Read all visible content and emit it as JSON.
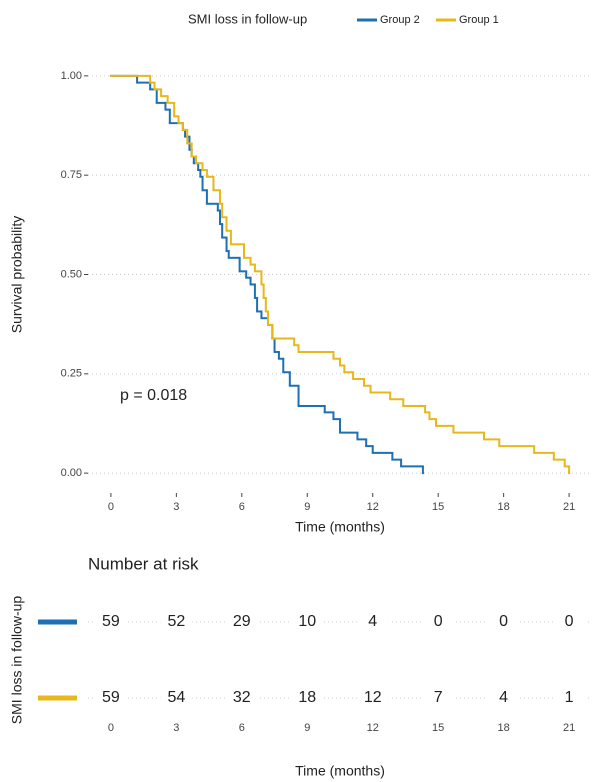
{
  "chart_data": [
    {
      "type": "step",
      "legend_title": "SMI loss in follow-up",
      "x_label": "Time (months)",
      "y_label": "Survival probability",
      "annotation": "p = 0.018",
      "xlim": [
        -1.05,
        22.05
      ],
      "ylim": [
        -0.05,
        1.05
      ],
      "xticks": [
        0,
        3,
        6,
        9,
        12,
        15,
        18,
        21
      ],
      "yticks": [
        {
          "value": 0,
          "label": "0.00"
        },
        0.25,
        {
          "value": 0.5,
          "label": "0.50"
        },
        0.75,
        {
          "value": 1,
          "label": "1.00"
        }
      ],
      "grid": true,
      "series": [
        {
          "name": "Group 2",
          "color": "#1f6fb5",
          "x": [
            0,
            1.2,
            1.8,
            2.1,
            2.5,
            2.7,
            3.3,
            3.4,
            3.6,
            3.7,
            3.8,
            4.0,
            4.1,
            4.2,
            4.4,
            4.9,
            5.0,
            5.1,
            5.3,
            5.4,
            5.9,
            6.2,
            6.4,
            6.6,
            6.7,
            6.9,
            7.2,
            7.4,
            7.5,
            7.7,
            7.9,
            8.2,
            8.6,
            9.8,
            10.2,
            10.5,
            11.3,
            11.7,
            12.0,
            12.9,
            13.3,
            14.3
          ],
          "values": [
            1,
            0.983,
            0.966,
            0.932,
            0.915,
            0.881,
            0.864,
            0.847,
            0.814,
            0.797,
            0.78,
            0.763,
            0.746,
            0.712,
            0.678,
            0.661,
            0.627,
            0.593,
            0.559,
            0.542,
            0.508,
            0.492,
            0.475,
            0.441,
            0.407,
            0.39,
            0.373,
            0.339,
            0.305,
            0.288,
            0.254,
            0.22,
            0.169,
            0.153,
            0.136,
            0.102,
            0.085,
            0.068,
            0.051,
            0.034,
            0.017,
            0
          ]
        },
        {
          "name": "Group 1",
          "color": "#e8b81a",
          "x": [
            0,
            1.8,
            2.0,
            2.3,
            2.6,
            2.9,
            3.1,
            3.3,
            3.5,
            3.7,
            3.9,
            4.2,
            4.4,
            4.7,
            5.0,
            5.1,
            5.3,
            5.5,
            6.1,
            6.4,
            6.6,
            6.9,
            7.0,
            7.1,
            7.2,
            7.4,
            8.4,
            8.6,
            10.2,
            10.5,
            10.7,
            11.1,
            11.6,
            11.9,
            12.8,
            13.4,
            14.4,
            14.6,
            14.9,
            15.7,
            17.1,
            17.8,
            19.4,
            20.3,
            20.8,
            21.0
          ],
          "values": [
            1,
            0.983,
            0.966,
            0.949,
            0.932,
            0.898,
            0.881,
            0.864,
            0.83,
            0.797,
            0.78,
            0.763,
            0.746,
            0.712,
            0.678,
            0.644,
            0.61,
            0.576,
            0.542,
            0.525,
            0.508,
            0.475,
            0.441,
            0.407,
            0.373,
            0.339,
            0.322,
            0.305,
            0.288,
            0.271,
            0.254,
            0.237,
            0.22,
            0.203,
            0.186,
            0.169,
            0.153,
            0.136,
            0.119,
            0.102,
            0.085,
            0.068,
            0.051,
            0.034,
            0.017,
            0
          ]
        }
      ]
    },
    {
      "type": "risk_table",
      "title": "Number at risk",
      "x_label": "Time (months)",
      "y_label": "SMI loss in follow-up",
      "xlim": [
        -1.05,
        22.05
      ],
      "xticks": [
        0,
        3,
        6,
        9,
        12,
        15,
        18,
        21
      ],
      "series": [
        {
          "color": "#1f6fb5",
          "values": [
            59,
            52,
            29,
            10,
            4,
            0,
            0,
            0
          ]
        },
        {
          "color": "#e8b81a",
          "values": [
            59,
            54,
            32,
            18,
            12,
            7,
            4,
            1
          ]
        }
      ]
    }
  ]
}
